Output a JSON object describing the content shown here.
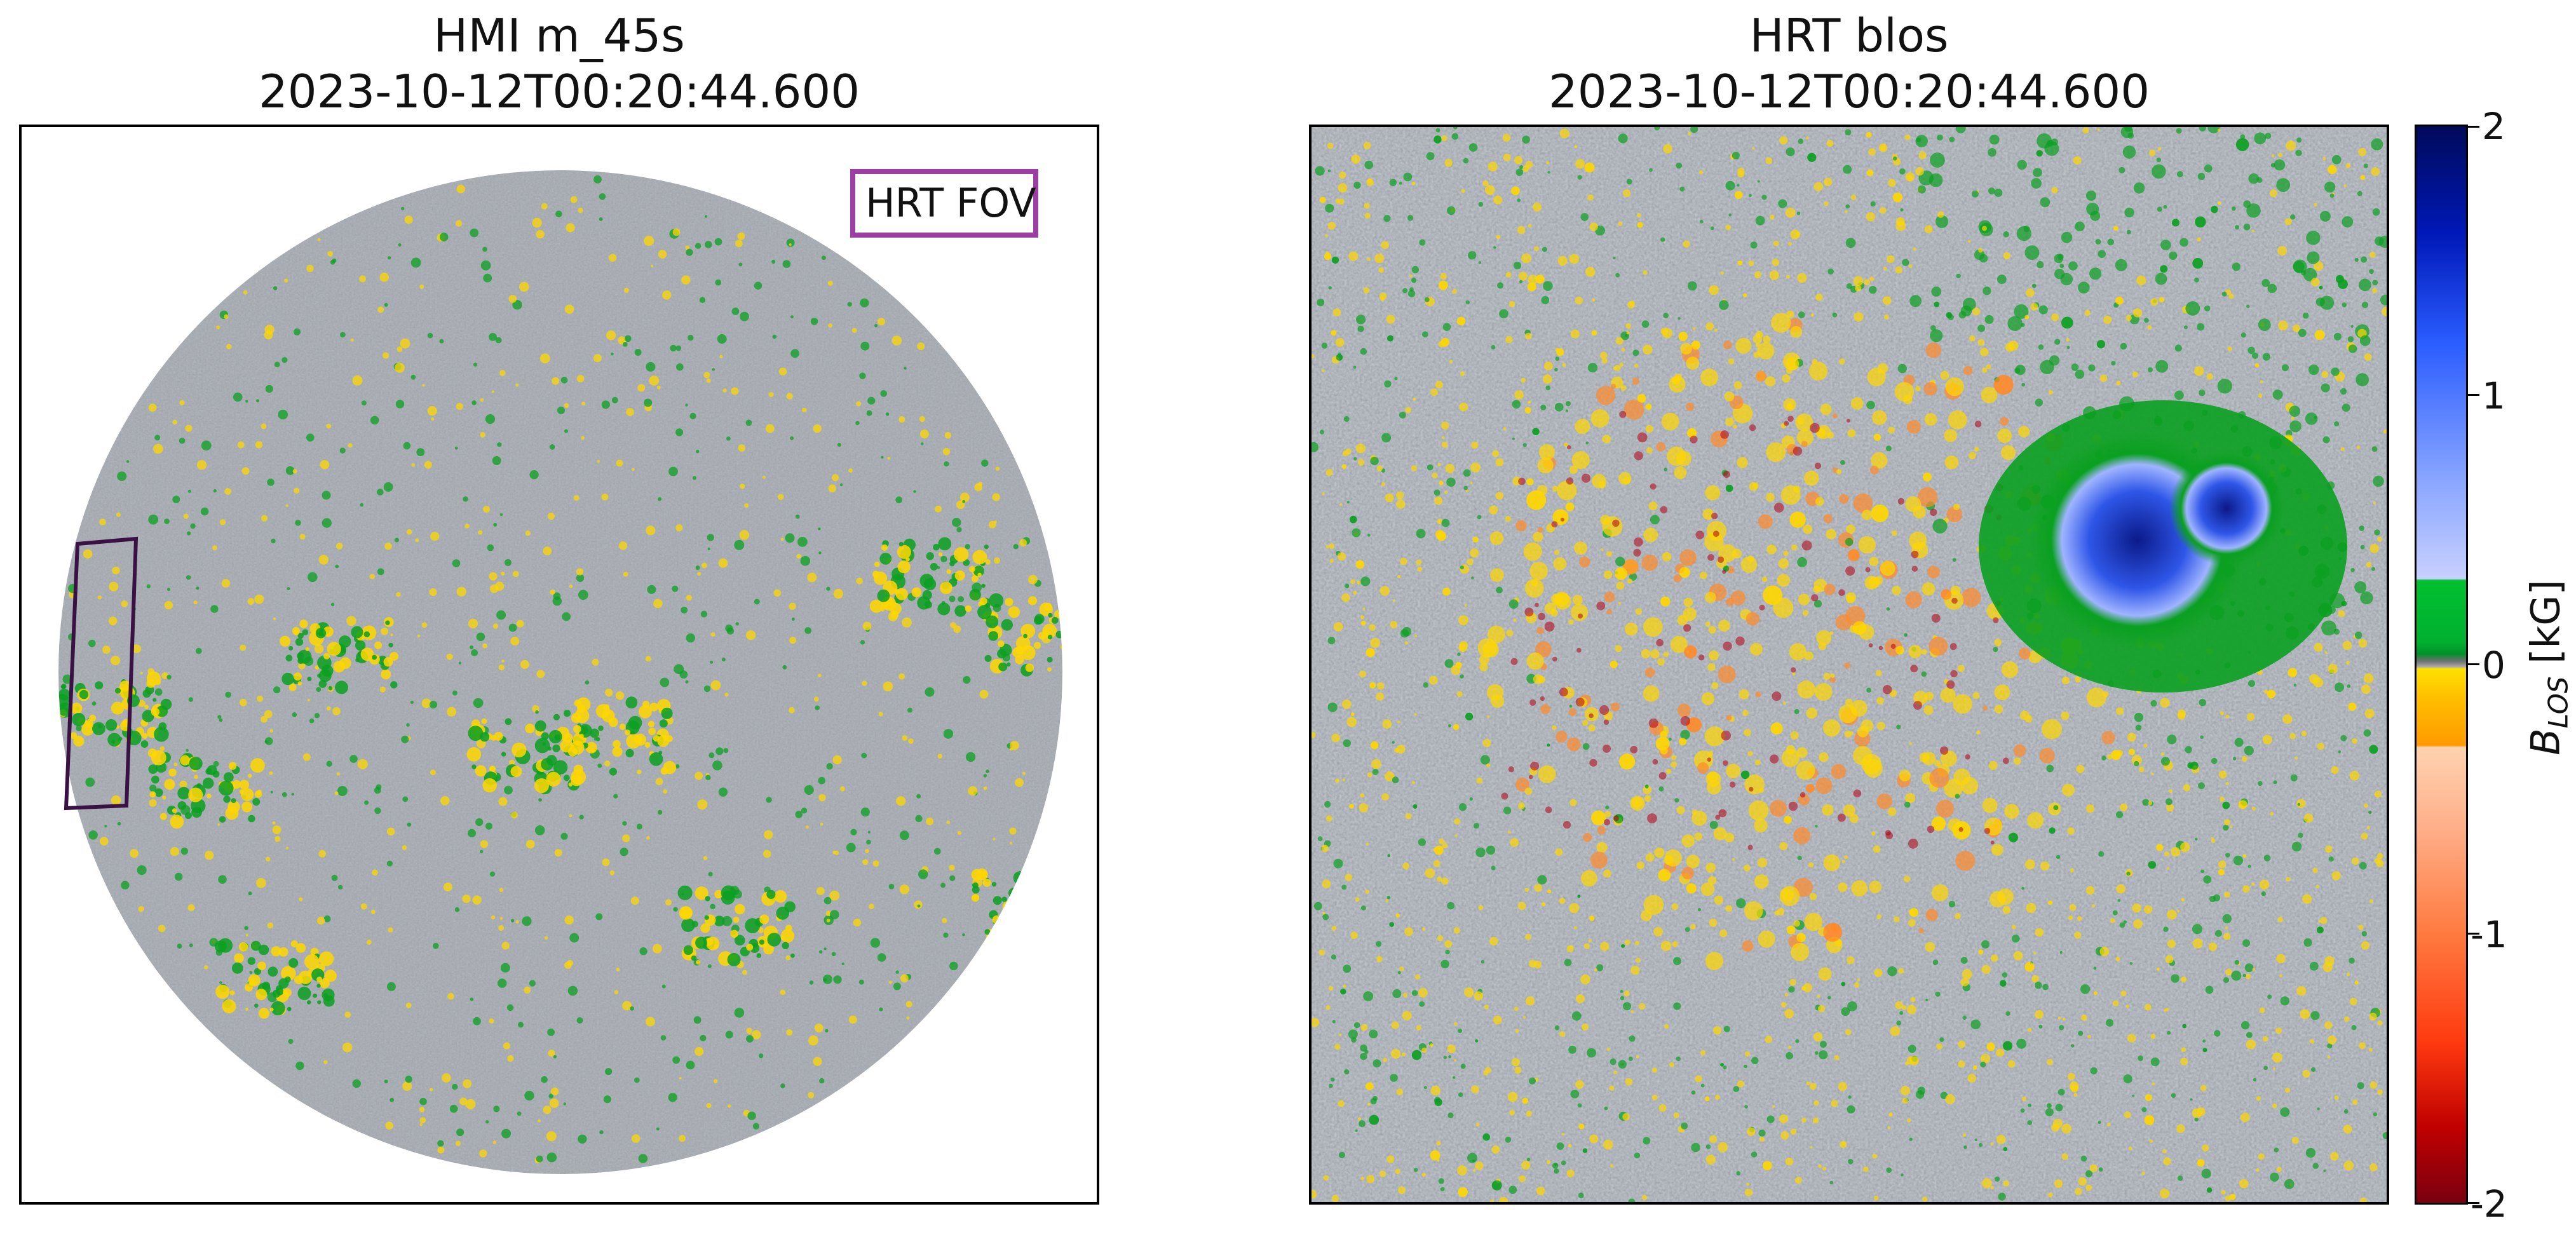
{
  "left_panel": {
    "title_line1": "HMI m_45s",
    "title_line2": "2023-10-12T00:20:44.600",
    "legend_label": "HRT FOV",
    "legend_color": "#9b3fa3",
    "fov_color": "#3b1045"
  },
  "right_panel": {
    "title_line1": "HRT blos",
    "title_line2": "2023-10-12T00:20:44.600"
  },
  "colorbar": {
    "label": "B_LOS [kG]",
    "ticks": [
      "2",
      "1",
      "0",
      "-1",
      "-2"
    ]
  },
  "colors": {
    "positive_strong": "#0a1a8a",
    "positive_mid": "#3d6bff",
    "positive_weak": "#b8c4ff",
    "green": "#0aa020",
    "quiet_gray": "#9aa0a8",
    "yellow": "#ffd700",
    "orange": "#ff8a2a",
    "red": "#b00010"
  }
}
